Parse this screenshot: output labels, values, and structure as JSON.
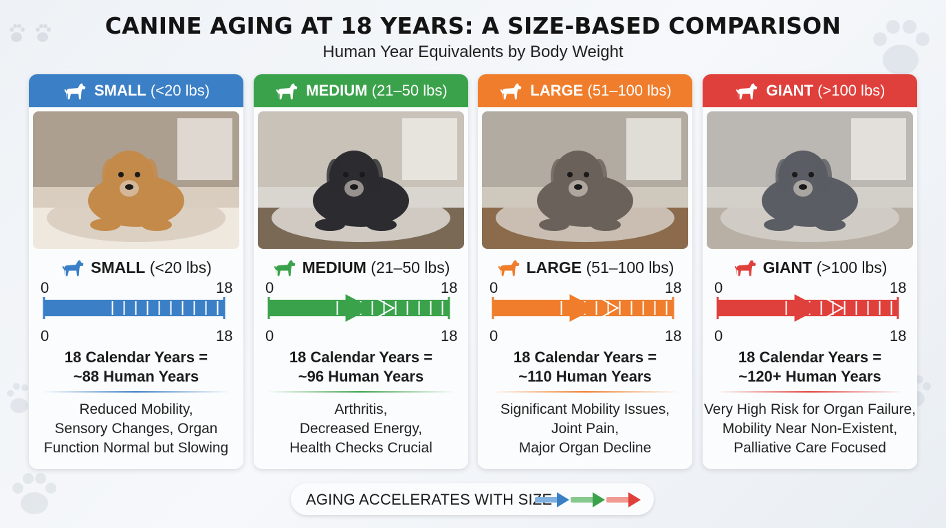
{
  "title": "CANINE AGING AT 18 YEARS: A SIZE-BASED COMPARISON",
  "subtitle": "Human Year Equivalents by Body Weight",
  "footer": {
    "text": "AGING ACCELERATES WITH SIZE",
    "arrow_colors": [
      "#3b7fc6",
      "#3aa24a",
      "#e0403c"
    ]
  },
  "cards": [
    {
      "size": "SMALL",
      "range": "(<20 lbs)",
      "color": "#3b7fc6",
      "icon": "dog-icon",
      "scale_start": "0",
      "scale_end": "18",
      "result_line1": "18 Calendar Years =",
      "result_line2": "~88 Human Years",
      "desc": [
        "Reduced Mobility,",
        "Sensory Changes, Organ",
        "Function Normal but Slowing"
      ]
    },
    {
      "size": "MEDIUM",
      "range": "(21–50 lbs)",
      "color": "#3aa24a",
      "icon": "dog-icon",
      "scale_start": "0",
      "scale_end": "18",
      "result_line1": "18 Calendar Years =",
      "result_line2": "~96 Human Years",
      "desc": [
        "Arthritis,",
        "Decreased Energy,",
        "Health Checks Crucial"
      ]
    },
    {
      "size": "LARGE",
      "range": "(51–100 lbs)",
      "color": "#ef7d2b",
      "icon": "dog-icon",
      "scale_start": "0",
      "scale_end": "18",
      "result_line1": "18 Calendar Years =",
      "result_line2": "~110 Human Years",
      "desc": [
        "Significant Mobility Issues,",
        "Joint Pain,",
        "Major Organ Decline"
      ]
    },
    {
      "size": "GIANT",
      "range": "(>100 lbs)",
      "color": "#e0403c",
      "icon": "dog-icon",
      "scale_start": "0",
      "scale_end": "18",
      "result_line1": "18 Calendar Years =",
      "result_line2": "~120+ Human Years",
      "desc": [
        "Very High Risk for Organ Failure,",
        "Mobility Near Non-Existent,",
        "Palliative Care Focused"
      ]
    }
  ]
}
